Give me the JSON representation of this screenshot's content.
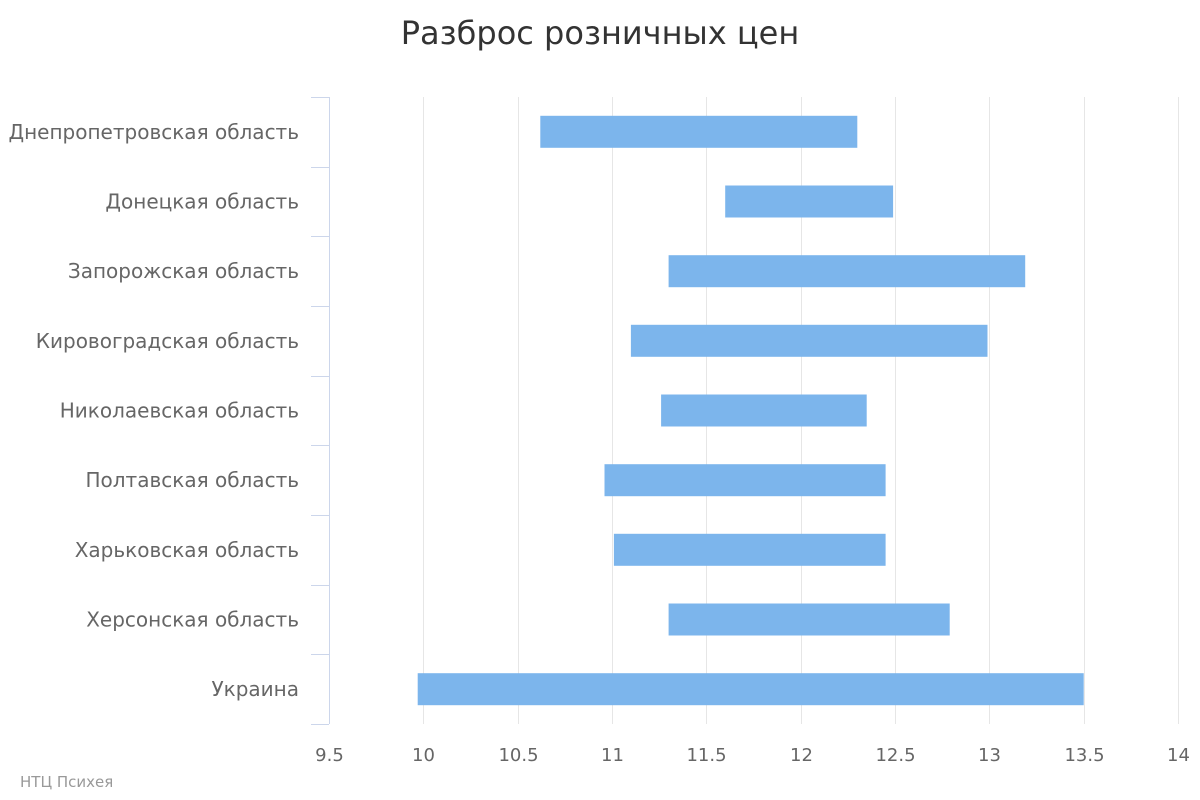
{
  "chart_data": {
    "type": "bar",
    "orientation": "horizontal",
    "variant": "range",
    "title": "Разброс розничных цен",
    "xlabel": "",
    "ylabel": "",
    "categories": [
      "Днепропетровская область",
      "Донецкая область",
      "Запорожская область",
      "Кировоградская область",
      "Николаевская область",
      "Полтавская область",
      "Харьковская область",
      "Херсонская область",
      "Украина"
    ],
    "ranges": [
      [
        10.62,
        12.3
      ],
      [
        11.6,
        12.49
      ],
      [
        11.3,
        13.19
      ],
      [
        11.1,
        12.99
      ],
      [
        11.26,
        12.35
      ],
      [
        10.96,
        12.45
      ],
      [
        11.01,
        12.45
      ],
      [
        11.3,
        12.79
      ],
      [
        9.97,
        13.5
      ]
    ],
    "xlim": [
      9.5,
      14
    ],
    "xticks": [
      "9.5",
      "10",
      "10.5",
      "11",
      "11.5",
      "12",
      "12.5",
      "13",
      "13.5",
      "14"
    ],
    "grid": true,
    "legend": "none",
    "colors": {
      "bar": "#7cb5ec",
      "grid": "#e6e6e6",
      "axis": "#ccd6eb",
      "label": "#666666",
      "title": "#333333"
    }
  },
  "credits": "НТЦ Психея"
}
